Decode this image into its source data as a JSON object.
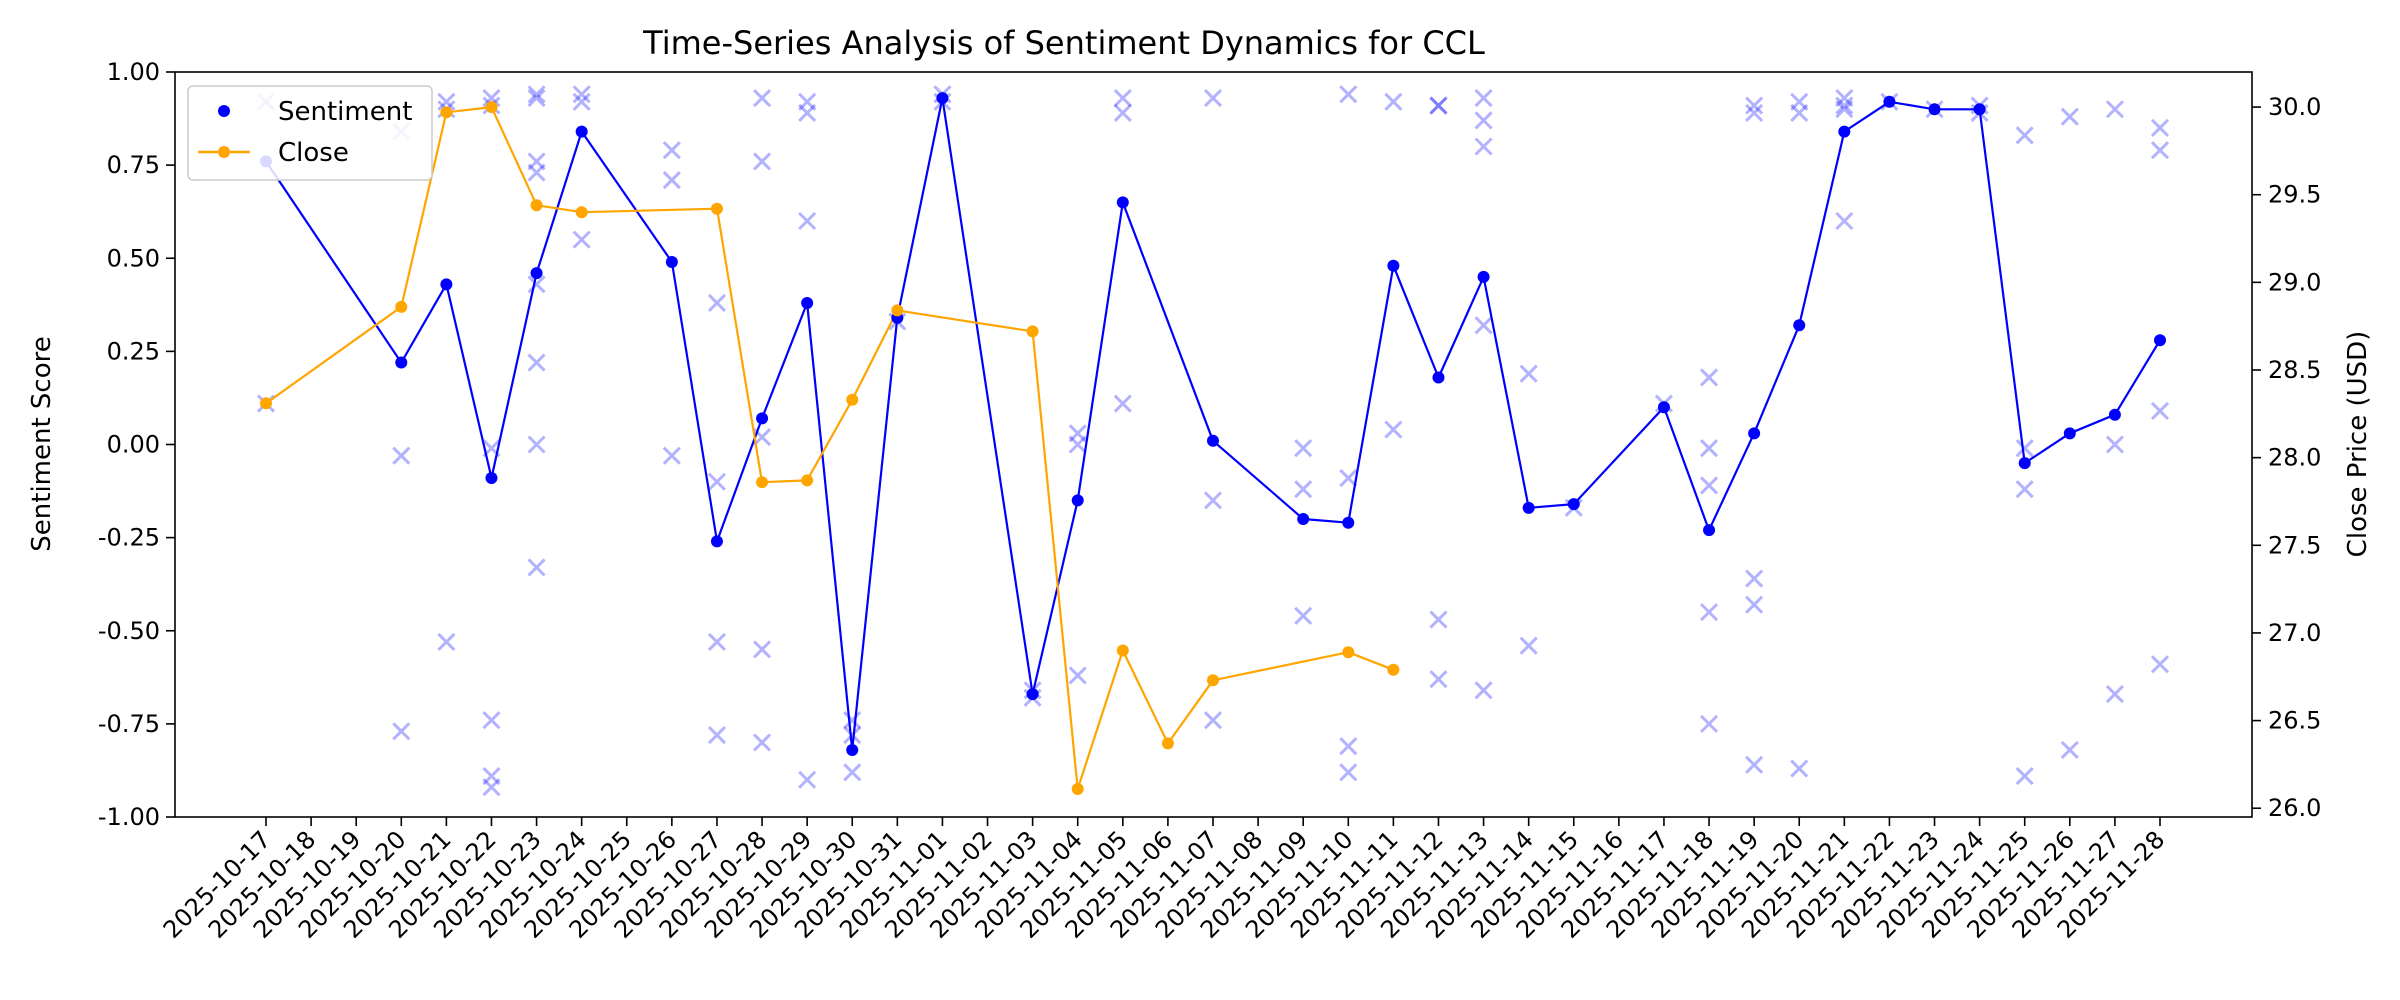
{
  "chart_data": {
    "type": "line",
    "title": "Time-Series Analysis of Sentiment Dynamics for CCL",
    "ylabel_left": "Sentiment Score",
    "ylabel_right": "Close Price (USD)",
    "ylim_left": [
      -1.0,
      1.0
    ],
    "ylim_right": [
      25.95,
      30.2
    ],
    "yticks_left": [
      "-1.00",
      "-0.75",
      "-0.50",
      "-0.25",
      "0.00",
      "0.25",
      "0.50",
      "0.75",
      "1.00"
    ],
    "yticks_right": [
      "26.0",
      "26.5",
      "27.0",
      "27.5",
      "28.0",
      "28.5",
      "29.0",
      "29.5",
      "30.0"
    ],
    "grid": false,
    "legend_position": "top-left",
    "dates": [
      "2025-10-17",
      "2025-10-18",
      "2025-10-19",
      "2025-10-20",
      "2025-10-21",
      "2025-10-22",
      "2025-10-23",
      "2025-10-24",
      "2025-10-25",
      "2025-10-26",
      "2025-10-27",
      "2025-10-28",
      "2025-10-29",
      "2025-10-30",
      "2025-10-31",
      "2025-11-01",
      "2025-11-02",
      "2025-11-03",
      "2025-11-04",
      "2025-11-05",
      "2025-11-06",
      "2025-11-07",
      "2025-11-08",
      "2025-11-09",
      "2025-11-10",
      "2025-11-11",
      "2025-11-12",
      "2025-11-13",
      "2025-11-14",
      "2025-11-15",
      "2025-11-16",
      "2025-11-17",
      "2025-11-18",
      "2025-11-19",
      "2025-11-20",
      "2025-11-21",
      "2025-11-22",
      "2025-11-23",
      "2025-11-24",
      "2025-11-25",
      "2025-11-26",
      "2025-11-27",
      "2025-11-28"
    ],
    "series": [
      {
        "name": "Sentiment",
        "color": "#0000ff",
        "axis": "left",
        "points": [
          [
            "2025-10-17",
            0.76
          ],
          [
            "2025-10-20",
            0.22
          ],
          [
            "2025-10-21",
            0.43
          ],
          [
            "2025-10-22",
            -0.09
          ],
          [
            "2025-10-23",
            0.46
          ],
          [
            "2025-10-24",
            0.84
          ],
          [
            "2025-10-26",
            0.49
          ],
          [
            "2025-10-27",
            -0.26
          ],
          [
            "2025-10-28",
            0.07
          ],
          [
            "2025-10-29",
            0.38
          ],
          [
            "2025-10-30",
            -0.82
          ],
          [
            "2025-10-31",
            0.34
          ],
          [
            "2025-11-01",
            0.93
          ],
          [
            "2025-11-03",
            -0.67
          ],
          [
            "2025-11-04",
            -0.15
          ],
          [
            "2025-11-05",
            0.65
          ],
          [
            "2025-11-07",
            0.01
          ],
          [
            "2025-11-09",
            -0.2
          ],
          [
            "2025-11-10",
            -0.21
          ],
          [
            "2025-11-11",
            0.48
          ],
          [
            "2025-11-12",
            0.18
          ],
          [
            "2025-11-13",
            0.45
          ],
          [
            "2025-11-14",
            -0.17
          ],
          [
            "2025-11-15",
            -0.16
          ],
          [
            "2025-11-17",
            0.1
          ],
          [
            "2025-11-18",
            -0.23
          ],
          [
            "2025-11-19",
            0.03
          ],
          [
            "2025-11-20",
            0.32
          ],
          [
            "2025-11-21",
            0.84
          ],
          [
            "2025-11-22",
            0.92
          ],
          [
            "2025-11-23",
            0.9
          ],
          [
            "2025-11-24",
            0.9
          ],
          [
            "2025-11-25",
            -0.05
          ],
          [
            "2025-11-26",
            0.03
          ],
          [
            "2025-11-27",
            0.08
          ],
          [
            "2025-11-28",
            0.28
          ]
        ]
      },
      {
        "name": "Close",
        "color": "#ffa500",
        "axis": "right",
        "points": [
          [
            "2025-10-17",
            28.31
          ],
          [
            "2025-10-20",
            28.86
          ],
          [
            "2025-10-21",
            29.97
          ],
          [
            "2025-10-22",
            30.0
          ],
          [
            "2025-10-23",
            29.44
          ],
          [
            "2025-10-24",
            29.4
          ],
          [
            "2025-10-27",
            29.42
          ],
          [
            "2025-10-28",
            27.86
          ],
          [
            "2025-10-29",
            27.87
          ],
          [
            "2025-10-30",
            28.33
          ],
          [
            "2025-10-31",
            28.84
          ],
          [
            "2025-11-03",
            28.72
          ],
          [
            "2025-11-04",
            26.11
          ],
          [
            "2025-11-05",
            26.9
          ],
          [
            "2025-11-06",
            26.37
          ],
          [
            "2025-11-07",
            26.73
          ],
          [
            "2025-11-10",
            26.89
          ],
          [
            "2025-11-11",
            26.79
          ]
        ]
      }
    ],
    "raw_scores": {
      "color": "#0000ff",
      "opacity": 0.3,
      "points": [
        [
          "2025-10-17",
          0.92
        ],
        [
          "2025-10-17",
          0.11
        ],
        [
          "2025-10-20",
          0.84
        ],
        [
          "2025-10-20",
          -0.03
        ],
        [
          "2025-10-20",
          -0.77
        ],
        [
          "2025-10-21",
          0.92
        ],
        [
          "2025-10-21",
          0.9
        ],
        [
          "2025-10-21",
          -0.53
        ],
        [
          "2025-10-22",
          0.93
        ],
        [
          "2025-10-22",
          0.91
        ],
        [
          "2025-10-22",
          -0.01
        ],
        [
          "2025-10-22",
          -0.74
        ],
        [
          "2025-10-22",
          -0.89
        ],
        [
          "2025-10-22",
          -0.92
        ],
        [
          "2025-10-23",
          0.94
        ],
        [
          "2025-10-23",
          0.93
        ],
        [
          "2025-10-23",
          0.76
        ],
        [
          "2025-10-23",
          0.73
        ],
        [
          "2025-10-23",
          0.43
        ],
        [
          "2025-10-23",
          0.22
        ],
        [
          "2025-10-23",
          0.0
        ],
        [
          "2025-10-23",
          -0.33
        ],
        [
          "2025-10-24",
          0.94
        ],
        [
          "2025-10-24",
          0.92
        ],
        [
          "2025-10-24",
          0.55
        ],
        [
          "2025-10-26",
          0.79
        ],
        [
          "2025-10-26",
          0.71
        ],
        [
          "2025-10-26",
          -0.03
        ],
        [
          "2025-10-27",
          0.38
        ],
        [
          "2025-10-27",
          -0.1
        ],
        [
          "2025-10-27",
          -0.53
        ],
        [
          "2025-10-27",
          -0.78
        ],
        [
          "2025-10-28",
          0.93
        ],
        [
          "2025-10-28",
          0.76
        ],
        [
          "2025-10-28",
          0.02
        ],
        [
          "2025-10-28",
          -0.55
        ],
        [
          "2025-10-28",
          -0.8
        ],
        [
          "2025-10-29",
          0.92
        ],
        [
          "2025-10-29",
          0.89
        ],
        [
          "2025-10-29",
          0.6
        ],
        [
          "2025-10-29",
          -0.9
        ],
        [
          "2025-10-30",
          -0.74
        ],
        [
          "2025-10-30",
          -0.78
        ],
        [
          "2025-10-30",
          -0.88
        ],
        [
          "2025-10-31",
          0.33
        ],
        [
          "2025-11-01",
          0.94
        ],
        [
          "2025-11-01",
          0.92
        ],
        [
          "2025-11-03",
          -0.66
        ],
        [
          "2025-11-03",
          -0.68
        ],
        [
          "2025-11-04",
          0.03
        ],
        [
          "2025-11-04",
          0.0
        ],
        [
          "2025-11-04",
          -0.62
        ],
        [
          "2025-11-05",
          0.93
        ],
        [
          "2025-11-05",
          0.89
        ],
        [
          "2025-11-05",
          0.11
        ],
        [
          "2025-11-07",
          0.93
        ],
        [
          "2025-11-07",
          -0.15
        ],
        [
          "2025-11-07",
          -0.74
        ],
        [
          "2025-11-09",
          -0.01
        ],
        [
          "2025-11-09",
          -0.12
        ],
        [
          "2025-11-09",
          -0.46
        ],
        [
          "2025-11-10",
          0.94
        ],
        [
          "2025-11-10",
          -0.09
        ],
        [
          "2025-11-10",
          -0.81
        ],
        [
          "2025-11-10",
          -0.88
        ],
        [
          "2025-11-11",
          0.92
        ],
        [
          "2025-11-11",
          0.04
        ],
        [
          "2025-11-12",
          0.91
        ],
        [
          "2025-11-12",
          0.91
        ],
        [
          "2025-11-12",
          -0.47
        ],
        [
          "2025-11-12",
          -0.63
        ],
        [
          "2025-11-13",
          0.93
        ],
        [
          "2025-11-13",
          0.87
        ],
        [
          "2025-11-13",
          0.8
        ],
        [
          "2025-11-13",
          0.32
        ],
        [
          "2025-11-13",
          -0.66
        ],
        [
          "2025-11-14",
          0.19
        ],
        [
          "2025-11-14",
          -0.54
        ],
        [
          "2025-11-15",
          -0.17
        ],
        [
          "2025-11-17",
          0.11
        ],
        [
          "2025-11-18",
          0.18
        ],
        [
          "2025-11-18",
          -0.01
        ],
        [
          "2025-11-18",
          -0.11
        ],
        [
          "2025-11-18",
          -0.45
        ],
        [
          "2025-11-18",
          -0.75
        ],
        [
          "2025-11-19",
          0.91
        ],
        [
          "2025-11-19",
          0.89
        ],
        [
          "2025-11-19",
          -0.36
        ],
        [
          "2025-11-19",
          -0.43
        ],
        [
          "2025-11-19",
          -0.86
        ],
        [
          "2025-11-20",
          0.92
        ],
        [
          "2025-11-20",
          0.89
        ],
        [
          "2025-11-20",
          -0.87
        ],
        [
          "2025-11-21",
          0.93
        ],
        [
          "2025-11-21",
          0.91
        ],
        [
          "2025-11-21",
          0.9
        ],
        [
          "2025-11-21",
          0.6
        ],
        [
          "2025-11-22",
          0.92
        ],
        [
          "2025-11-23",
          0.9
        ],
        [
          "2025-11-24",
          0.91
        ],
        [
          "2025-11-24",
          0.89
        ],
        [
          "2025-11-25",
          0.83
        ],
        [
          "2025-11-25",
          -0.01
        ],
        [
          "2025-11-25",
          -0.12
        ],
        [
          "2025-11-25",
          -0.89
        ],
        [
          "2025-11-26",
          0.88
        ],
        [
          "2025-11-26",
          -0.82
        ],
        [
          "2025-11-27",
          0.9
        ],
        [
          "2025-11-27",
          0.0
        ],
        [
          "2025-11-27",
          -0.67
        ],
        [
          "2025-11-28",
          0.85
        ],
        [
          "2025-11-28",
          0.79
        ],
        [
          "2025-11-28",
          0.09
        ],
        [
          "2025-11-28",
          -0.59
        ]
      ]
    }
  }
}
